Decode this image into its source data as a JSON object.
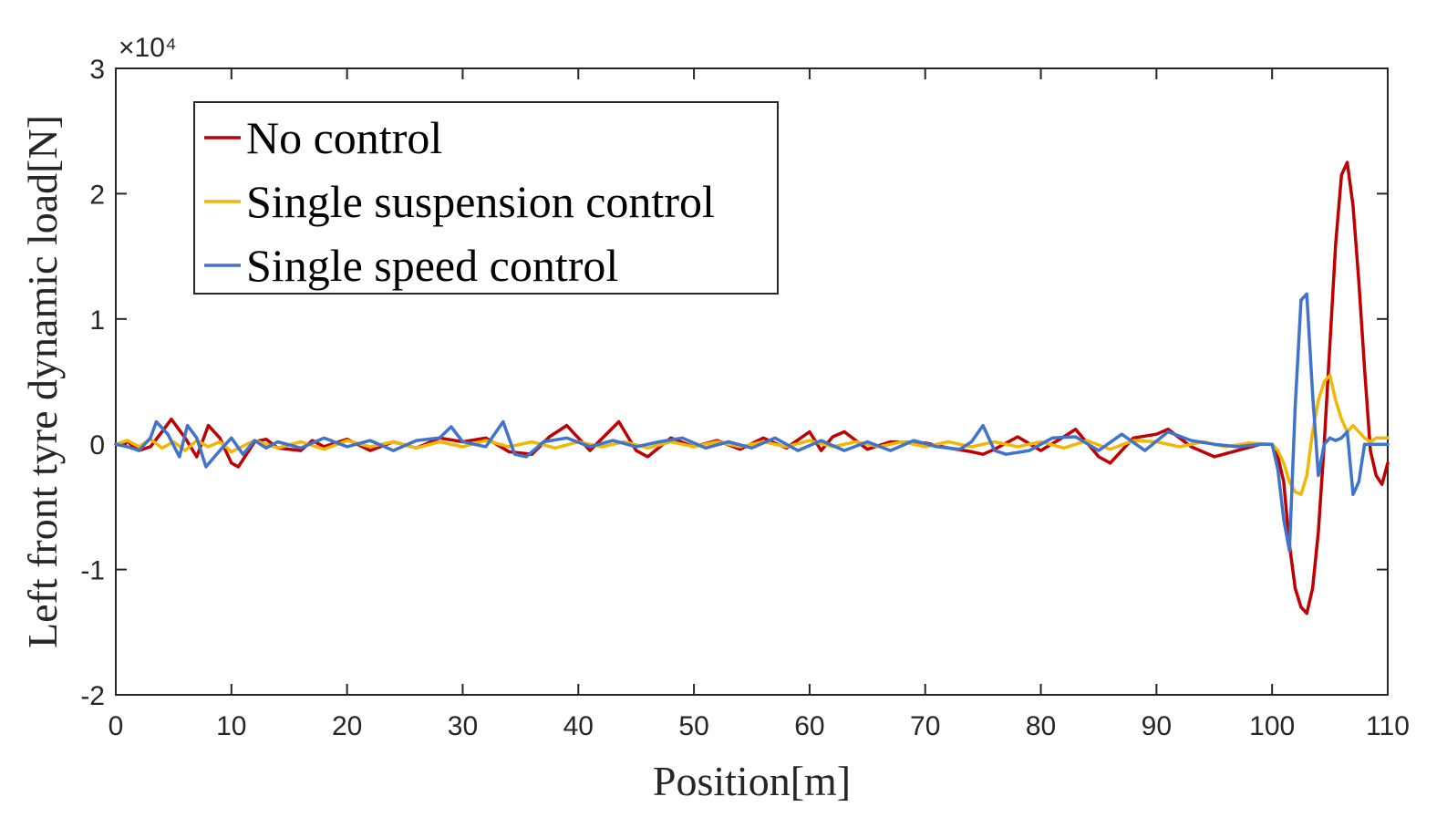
{
  "chart_data": {
    "type": "line",
    "title": "",
    "xlabel": "Position[m]",
    "ylabel": "Left front tyre dynamic load[N]",
    "y_exponent_label": "×10⁴",
    "xlim": [
      0,
      110
    ],
    "ylim": [
      -2,
      3
    ],
    "x_ticks": [
      0,
      10,
      20,
      30,
      40,
      50,
      60,
      70,
      80,
      90,
      100,
      110
    ],
    "y_ticks": [
      -2,
      -1,
      0,
      1,
      2,
      3
    ],
    "x_tick_labels": [
      "0",
      "10",
      "20",
      "30",
      "40",
      "50",
      "60",
      "70",
      "80",
      "90",
      "100",
      "110"
    ],
    "y_tick_labels": [
      "-2",
      "-1",
      "0",
      "1",
      "2",
      "3"
    ],
    "grid": false,
    "legend_position": "top-left",
    "series": [
      {
        "name": "No control",
        "color": "#C00000",
        "x": [
          0,
          1,
          2,
          3,
          4,
          4.8,
          6,
          7,
          8,
          9,
          10,
          10.6,
          12,
          13,
          14,
          16,
          17,
          18,
          20,
          22,
          24,
          26,
          28,
          30,
          32,
          34,
          36,
          37.5,
          39,
          41,
          43.5,
          45,
          46,
          48,
          50,
          52,
          54,
          56,
          58,
          60,
          61,
          62,
          63,
          65,
          67,
          70,
          72,
          74,
          75,
          76,
          78,
          80,
          82,
          83,
          85,
          86,
          88,
          90,
          91,
          93,
          95,
          97,
          99,
          100,
          100.5,
          101,
          101.5,
          102,
          102.5,
          103,
          103.5,
          104,
          104.5,
          105,
          105.5,
          106,
          106.5,
          107,
          107.5,
          108,
          108.5,
          109,
          109.5,
          110
        ],
        "y": [
          0,
          0.02,
          -0.05,
          -0.02,
          0.1,
          0.2,
          0.05,
          -0.1,
          0.15,
          0.05,
          -0.15,
          -0.18,
          0.02,
          0.04,
          -0.03,
          -0.05,
          0.03,
          -0.02,
          0.04,
          -0.05,
          0.02,
          -0.03,
          0.05,
          0.02,
          0.05,
          -0.06,
          -0.08,
          0.06,
          0.15,
          -0.05,
          0.18,
          -0.05,
          -0.1,
          0.05,
          -0.02,
          0.03,
          -0.04,
          0.05,
          -0.03,
          0.1,
          -0.05,
          0.06,
          0.1,
          -0.04,
          0.02,
          0.01,
          -0.03,
          -0.06,
          -0.08,
          -0.04,
          0.06,
          -0.05,
          0.06,
          0.12,
          -0.1,
          -0.15,
          0.05,
          0.08,
          0.12,
          -0.02,
          -0.1,
          -0.05,
          0,
          0,
          -0.1,
          -0.3,
          -0.8,
          -1.15,
          -1.3,
          -1.35,
          -1.15,
          -0.7,
          0,
          0.8,
          1.6,
          2.15,
          2.25,
          1.9,
          1.3,
          0.6,
          -0.05,
          -0.25,
          -0.32,
          -0.15
        ]
      },
      {
        "name": "Single suspension control",
        "color": "#F2B705",
        "x": [
          0,
          1,
          2,
          3,
          4,
          5,
          6,
          7,
          8,
          9,
          10,
          12,
          14,
          16,
          18,
          20,
          22,
          24,
          26,
          28,
          30,
          32,
          34,
          36,
          38,
          40,
          42,
          44,
          46,
          48,
          50,
          52,
          54,
          56,
          58,
          60,
          62,
          64,
          66,
          68,
          70,
          72,
          74,
          76,
          78,
          80,
          82,
          84,
          86,
          88,
          90,
          92,
          94,
          96,
          98,
          100,
          100.5,
          101,
          101.5,
          102,
          102.5,
          103,
          103.5,
          104,
          104.5,
          105,
          105.5,
          106,
          106.5,
          107,
          107.5,
          108,
          108.5,
          109,
          110
        ],
        "y": [
          0,
          0.03,
          -0.02,
          0.04,
          -0.03,
          0.02,
          -0.05,
          0.03,
          -0.02,
          0.02,
          -0.06,
          0.03,
          -0.03,
          0.02,
          -0.04,
          0.03,
          -0.02,
          0.02,
          -0.03,
          0.02,
          -0.02,
          0.03,
          -0.02,
          0.02,
          -0.03,
          0.02,
          -0.02,
          0.02,
          -0.03,
          0.02,
          -0.02,
          0.02,
          -0.02,
          0.02,
          -0.02,
          0.03,
          -0.02,
          0.02,
          -0.02,
          0.02,
          -0.02,
          0.02,
          -0.02,
          0.02,
          -0.02,
          0.02,
          -0.03,
          0.03,
          -0.04,
          0.03,
          0.02,
          -0.02,
          0.02,
          -0.02,
          0.01,
          0,
          -0.05,
          -0.15,
          -0.3,
          -0.38,
          -0.4,
          -0.25,
          0.1,
          0.35,
          0.5,
          0.55,
          0.35,
          0.2,
          0.1,
          0.15,
          0.1,
          0.05,
          0.02,
          0.05,
          0.05
        ]
      },
      {
        "name": "Single speed control",
        "color": "#3F73CC",
        "x": [
          0,
          1,
          2,
          3,
          3.5,
          4.5,
          5.5,
          6.2,
          7,
          7.8,
          9,
          10,
          11,
          12,
          13,
          14,
          16,
          18,
          20,
          22,
          24,
          26,
          28,
          29,
          30,
          32,
          33.5,
          34.5,
          35.5,
          37,
          39,
          41,
          43,
          45,
          47,
          49,
          51,
          53,
          55,
          57,
          59,
          61,
          63,
          65,
          67,
          69,
          71,
          73,
          74,
          75,
          76,
          77,
          79,
          81,
          83,
          85,
          87,
          89,
          91,
          93,
          95,
          97,
          99,
          100,
          100.5,
          101,
          101.5,
          102,
          102.5,
          103,
          103.5,
          104,
          104.5,
          105,
          105.5,
          106,
          106.5,
          107,
          107.5,
          108,
          109,
          110
        ],
        "y": [
          0,
          -0.02,
          -0.05,
          0.05,
          0.18,
          0.08,
          -0.1,
          0.15,
          0.05,
          -0.18,
          -0.05,
          0.05,
          -0.08,
          0.03,
          -0.03,
          0.02,
          -0.03,
          0.05,
          -0.02,
          0.03,
          -0.05,
          0.03,
          0.05,
          0.14,
          0.02,
          -0.02,
          0.18,
          -0.08,
          -0.1,
          0.02,
          0.05,
          -0.02,
          0.03,
          -0.02,
          0.02,
          0.05,
          -0.03,
          0.02,
          -0.03,
          0.05,
          -0.05,
          0.03,
          -0.05,
          0.02,
          -0.05,
          0.03,
          -0.02,
          -0.04,
          0.02,
          0.15,
          -0.05,
          -0.08,
          -0.05,
          0.05,
          0.06,
          -0.05,
          0.08,
          -0.05,
          0.1,
          0.03,
          0,
          -0.02,
          0,
          0,
          -0.2,
          -0.6,
          -0.85,
          0.3,
          1.15,
          1.2,
          0.4,
          -0.25,
          0,
          0.05,
          0.03,
          0.05,
          0.1,
          -0.4,
          -0.3,
          0,
          0,
          0
        ]
      }
    ]
  }
}
